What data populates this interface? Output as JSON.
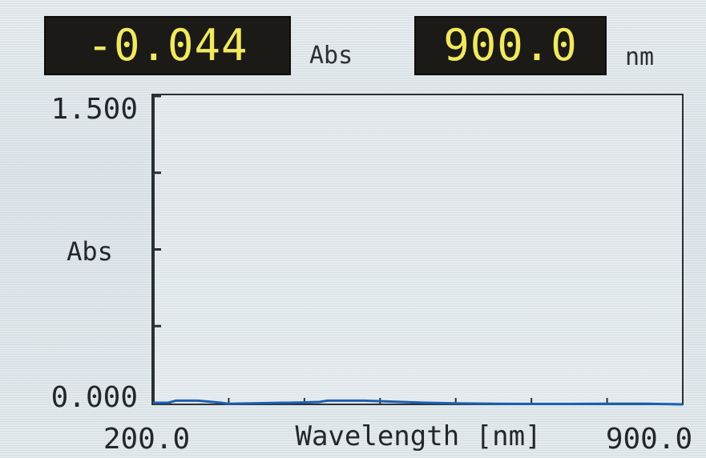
{
  "readouts": {
    "absorbance_value": "-0.044",
    "absorbance_unit": "Abs",
    "wavelength_value": "900.0",
    "wavelength_unit": "nm"
  },
  "colors": {
    "lcd_background": "#1b1a17",
    "lcd_digits": "#f1e95f",
    "spectrum_trace": "#1d5fb0",
    "axis": "#2a2f33"
  },
  "chart_data": {
    "type": "line",
    "ylabel": "Abs",
    "xlabel": "Wavelength [nm]",
    "ytick_labels": [
      "0.000",
      "1.500"
    ],
    "xtick_labels": [
      "200.0",
      "900.0"
    ],
    "xlim": [
      200,
      900
    ],
    "ylim": [
      0,
      1.5
    ],
    "grid": false,
    "series": [
      {
        "x": [
          200,
          220,
          230,
          260,
          290,
          300,
          330,
          370,
          380,
          420,
          430,
          480,
          520,
          560,
          600,
          650,
          700,
          750,
          800,
          850,
          900
        ],
        "values": [
          0.0,
          0.0,
          0.01,
          0.01,
          0.0,
          -0.005,
          -0.003,
          0.0,
          0.0,
          0.004,
          0.01,
          0.01,
          0.005,
          0.0,
          -0.003,
          -0.005,
          -0.006,
          -0.006,
          -0.005,
          -0.005,
          -0.044
        ]
      }
    ]
  }
}
